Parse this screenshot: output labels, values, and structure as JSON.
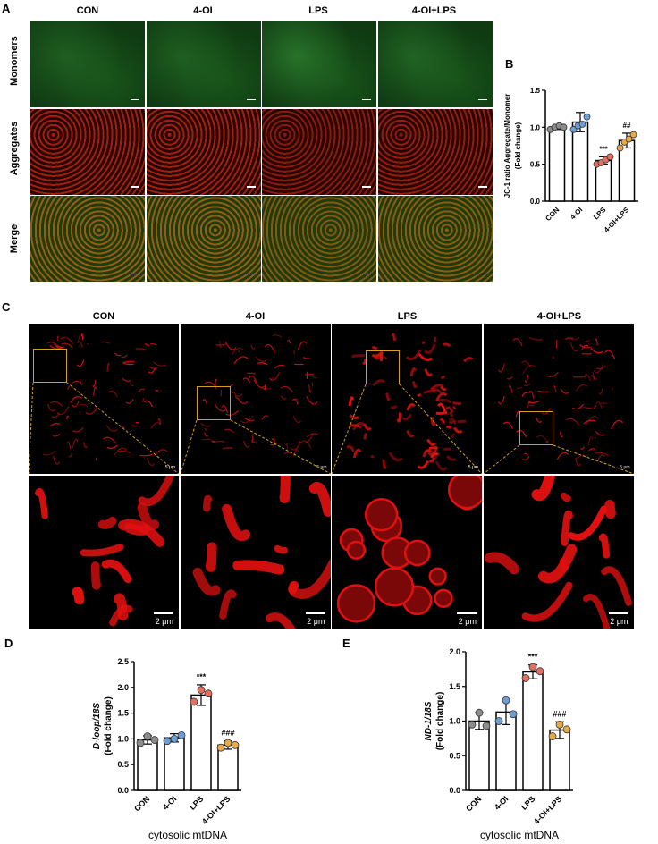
{
  "panel_labels": {
    "A": "A",
    "B": "B",
    "C": "C",
    "D": "D",
    "E": "E"
  },
  "panel_a": {
    "columns": [
      "CON",
      "4-OI",
      "LPS",
      "4-OI+LPS"
    ],
    "rows": [
      "Monomers",
      "Aggregates",
      "Merge"
    ],
    "colors": {
      "monomer": "#1f7a1f",
      "aggregate": "#b81a08",
      "merge": "#6a5a18",
      "separator": "#ffffff"
    }
  },
  "panel_c": {
    "columns": [
      "CON",
      "4-OI",
      "LPS",
      "4-OI+LPS"
    ],
    "scale_top": [
      "5 μm",
      "5 μm",
      "5 μm",
      "5 μm"
    ],
    "scale_bottom": [
      "2 μm",
      "2 μm",
      "2 μm",
      "2 μm"
    ],
    "colors": {
      "mito": "#e01010",
      "box": "#d4a017"
    }
  },
  "chart_data": [
    {
      "panel": "B",
      "type": "bar",
      "categories": [
        "CON",
        "4-OI",
        "LPS",
        "4-OI+LPS"
      ],
      "values": [
        1.0,
        1.07,
        0.55,
        0.82
      ],
      "errors": [
        0.03,
        0.13,
        0.05,
        0.1
      ],
      "points": [
        [
          0.97,
          1.0,
          1.02,
          1.0
        ],
        [
          0.97,
          1.02,
          1.04,
          1.14
        ],
        [
          0.5,
          0.52,
          0.56,
          0.6
        ],
        [
          0.72,
          0.8,
          0.84,
          0.9
        ]
      ],
      "point_colors": [
        "#8c8c8c",
        "#6d9fd4",
        "#e07060",
        "#e8a948"
      ],
      "ylabel": "JC-1 ratio Aggregate/Monomer (Fold change)",
      "ylim": [
        0,
        1.5
      ],
      "yticks": [
        "0.0",
        "0.5",
        "1.0",
        "1.5"
      ],
      "annotations": [
        {
          "category": "LPS",
          "text": "***"
        },
        {
          "category": "4-OI+LPS",
          "text": "##"
        }
      ]
    },
    {
      "panel": "D",
      "type": "bar",
      "categories": [
        "CON",
        "4-OI",
        "LPS",
        "4-OI+LPS"
      ],
      "values": [
        0.98,
        1.02,
        1.85,
        0.88
      ],
      "errors": [
        0.08,
        0.08,
        0.2,
        0.08
      ],
      "points": [
        [
          0.92,
          1.05,
          0.98
        ],
        [
          0.96,
          1.0,
          1.07
        ],
        [
          1.72,
          1.95,
          1.88
        ],
        [
          0.83,
          0.92,
          0.88
        ]
      ],
      "point_colors": [
        "#8c8c8c",
        "#6d9fd4",
        "#e07060",
        "#e8a948"
      ],
      "ylabel_italic": "D-loop/18S",
      "ylabel": "(Fold change)",
      "xlabel": "cytosolic mtDNA",
      "ylim": [
        0,
        2.5
      ],
      "yticks": [
        "0.0",
        "0.5",
        "1.0",
        "1.5",
        "2.0",
        "2.5"
      ],
      "annotations": [
        {
          "category": "LPS",
          "text": "***"
        },
        {
          "category": "4-OI+LPS",
          "text": "###"
        }
      ]
    },
    {
      "panel": "E",
      "type": "bar",
      "categories": [
        "CON",
        "4-OI",
        "LPS",
        "4-OI+LPS"
      ],
      "values": [
        1.0,
        1.13,
        1.71,
        0.87
      ],
      "errors": [
        0.12,
        0.18,
        0.1,
        0.12
      ],
      "points": [
        [
          0.95,
          1.12,
          0.93
        ],
        [
          1.0,
          1.3,
          1.1
        ],
        [
          1.62,
          1.78,
          1.72
        ],
        [
          0.78,
          0.95,
          0.88
        ]
      ],
      "point_colors": [
        "#8c8c8c",
        "#6d9fd4",
        "#e07060",
        "#e8a948"
      ],
      "ylabel_italic": "ND-1/18S",
      "ylabel": "(Fold change)",
      "xlabel": "cytosolic mtDNA",
      "ylim": [
        0,
        2.0
      ],
      "yticks": [
        "0.0",
        "0.5",
        "1.0",
        "1.5",
        "2.0"
      ],
      "annotations": [
        {
          "category": "LPS",
          "text": "***"
        },
        {
          "category": "4-OI+LPS",
          "text": "###"
        }
      ]
    }
  ]
}
